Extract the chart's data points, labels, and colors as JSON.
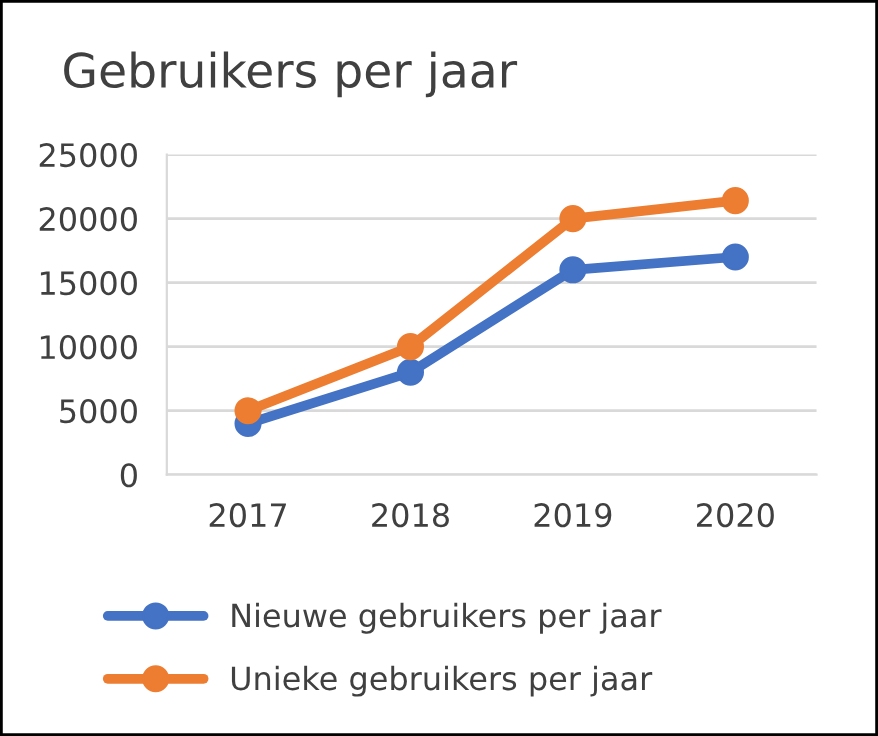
{
  "chart_data": {
    "type": "line",
    "title": "Gebruikers per jaar",
    "categories": [
      "2017",
      "2018",
      "2019",
      "2020"
    ],
    "series": [
      {
        "name": "Nieuwe gebruikers per jaar",
        "color": "#4472c4",
        "values": [
          4000,
          8000,
          16000,
          17000
        ]
      },
      {
        "name": "Unieke gebruikers per jaar",
        "color": "#ed7d31",
        "values": [
          5000,
          10000,
          20000,
          21400
        ]
      }
    ],
    "ylim": [
      0,
      25000
    ],
    "yticks": [
      0,
      5000,
      10000,
      15000,
      20000,
      25000
    ],
    "grid": "y",
    "legend": "bottom",
    "marker": "circle",
    "line_style": "solid"
  }
}
